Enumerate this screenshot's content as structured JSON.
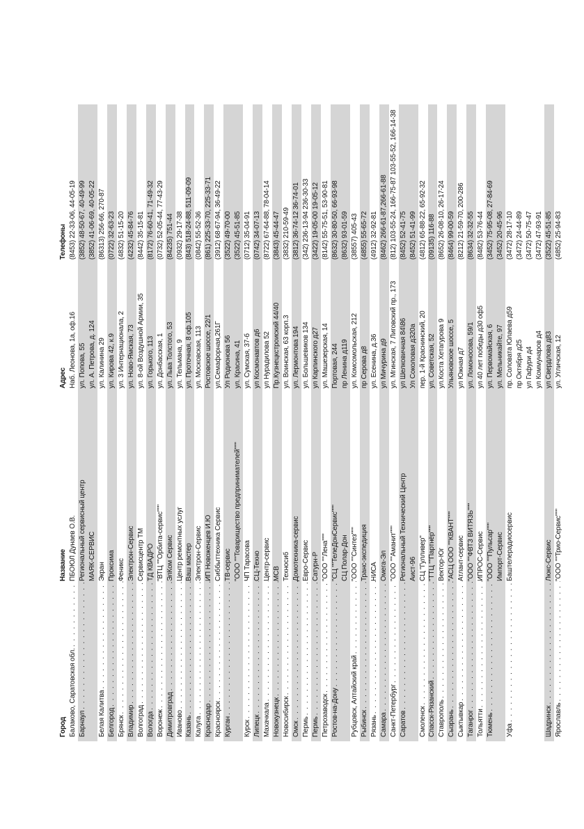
{
  "page": {
    "background": "#ffffff",
    "stripe_color": "#d5d5d5",
    "text_color": "#141414"
  },
  "table": {
    "columns": [
      {
        "key": "city",
        "label": "Город"
      },
      {
        "key": "name",
        "label": "Название"
      },
      {
        "key": "address",
        "label": "Адрес"
      },
      {
        "key": "phones",
        "label": "Телефоны"
      }
    ],
    "rows": [
      {
        "city": "Балаково, Саратовская обл.",
        "name": "ПБОЮЛ Дунаев О.В.",
        "address": "Наб. Леонова, 1а, оф.16",
        "phones": "(8453) 22-33-06, 44-05-19",
        "shaded": false,
        "leader": true
      },
      {
        "city": "Барнаул",
        "name": "Региональный сервисный центр",
        "address": "ул. Попова, 55",
        "phones": "(3852) 48-50-67, 40-49-99",
        "shaded": true,
        "leader": true
      },
      {
        "city": "",
        "name": "МАЯК-СЕРВИС",
        "address": "ул. А. Петрова, д. 124",
        "phones": "(3852) 41-06-69, 40-05-22",
        "shaded": true,
        "leader": false
      },
      {
        "city": "Белая Калитва",
        "name": "Экран",
        "address": "ул. Калинина 29",
        "phones": "(86313) 256-66, 270-87",
        "shaded": false,
        "leader": true
      },
      {
        "city": "Белгород",
        "name": "Проксима",
        "address": "ул. Кирова 42, к.9",
        "phones": "(0722) 32-63-23",
        "shaded": true,
        "leader": true
      },
      {
        "city": "Брянск",
        "name": "Феникс",
        "address": "ул. 3 Интернационала, 2",
        "phones": "(4832) 51-15-20",
        "shaded": false,
        "leader": true
      },
      {
        "city": "Владимир",
        "name": "Электрон-Сервис",
        "address": "ул. Ново-Ямская, 73",
        "phones": "(4232) 45-84-76",
        "shaded": true,
        "leader": true
      },
      {
        "city": "Волгоград",
        "name": "Сервисцентр ТМ",
        "address": "ул. 8-ой Воздушной Армии, 35",
        "phones": "(8442) 35-15-81",
        "shaded": false,
        "leader": true
      },
      {
        "city": "Вологда",
        "name": "ТД КВАДРО",
        "address": "ул. Горького, 113",
        "phones": "(8172) 76-60-41, 71-49-32",
        "shaded": true,
        "leader": true
      },
      {
        "city": "Воронеж",
        "name": "\"ВТЦ \"\"Орбита-сервис\"\"\"",
        "address": "ул. Донбасская, 1",
        "phones": "(0732) 52-05-44, 77-43-29",
        "shaded": false,
        "leader": true
      },
      {
        "city": "Димитровград",
        "name": "ЭлКом Сервис",
        "address": "ул. Льва Толстого, 53",
        "phones": "(84235) 751-44",
        "shaded": true,
        "leader": true
      },
      {
        "city": "Иваново",
        "name": "Центр ремонтных услуг",
        "address": "ул. Тельмана, 9",
        "phones": "(0932) 29-17-38",
        "shaded": false,
        "leader": true
      },
      {
        "city": "Казань",
        "name": "Ваш мастер",
        "address": "ул. Проточная, 8 оф.105",
        "phones": "(843) 518-24-88, 511-09-09",
        "shaded": true,
        "leader": true
      },
      {
        "city": "Калуга",
        "name": "Электрон-Сервис",
        "address": "ул. Московская, 113",
        "phones": "(0842) 55-52-36",
        "shaded": false,
        "leader": true
      },
      {
        "city": "Краснодар",
        "name": "ИП Новоженцев И.Ю",
        "address": "Ростовское шоссе, 22/1",
        "phones": "(861) 225-33-70, 225-33-71",
        "shaded": true,
        "leader": true
      },
      {
        "city": "Красноярск",
        "name": "Сиббыттехника Сервис",
        "address": "ул.Семафорная,261Г",
        "phones": "(3912) 68-67-94, 36-49-22",
        "shaded": false,
        "leader": true
      },
      {
        "city": "Курган",
        "name": "ТВ-сервис",
        "address": "Ул Родионова 56",
        "phones": "(3522) 49-70-00",
        "shaded": true,
        "leader": true
      },
      {
        "city": "",
        "name": "\"ООО \"\"Товарищество предпринимателей\"\"\"",
        "address": "ул. Красина, 41",
        "phones": "(3522) 45-51-85",
        "shaded": true,
        "leader": false
      },
      {
        "city": "Курск",
        "name": "ЧП Тарасова",
        "address": "ул. Сумская, 37-б",
        "phones": "(0712) 35-04-91",
        "shaded": false,
        "leader": true
      },
      {
        "city": "Липецк",
        "name": "СЦ-Техно",
        "address": "ул Космонавтов д6",
        "phones": "(0742) 34-07-13",
        "shaded": true,
        "leader": true
      },
      {
        "city": "Махачкала",
        "name": "Центр-сервис",
        "address": "ул Нурадилова 52",
        "phones": "(8722) 67-64-88, 78-04-14",
        "shaded": false,
        "leader": true
      },
      {
        "city": "Новокузнецк",
        "name": "МСВ",
        "address": "Пр.Кузнецкстроиский 44/40",
        "phones": "(3843) 45-44-47",
        "shaded": true,
        "leader": true
      },
      {
        "city": "Новосибирск",
        "name": "Техносиб",
        "address": "ул. Воинская, 63 корп.3",
        "phones": "(3832) 210-59-49",
        "shaded": false,
        "leader": true
      },
      {
        "city": "Омск",
        "name": "Домотехника-сервис",
        "address": "ул. Лермонтова 194",
        "phones": "(3812) 36-74-12 36-74-01",
        "shaded": true,
        "leader": true
      },
      {
        "city": "Пермь",
        "name": "Евро-Сервис",
        "address": "ул. Большевиков 134",
        "phones": "(342) 236-13-94 236-30-33",
        "shaded": false,
        "leader": true
      },
      {
        "city": "Пермь",
        "name": "Сатурн-Р",
        "address": "ул Карпинского д27",
        "phones": "(3422) 19-05-00 19-05-12",
        "shaded": true,
        "leader": true
      },
      {
        "city": "Петрозаводск",
        "name": "\"ООО \"\"Лена\"\"\"",
        "address": "ул. Машезерская, 14",
        "phones": "(8142) 55-75-51, 53-90-81",
        "shaded": false,
        "leader": true
      },
      {
        "city": "Ростов-на-Дону",
        "name": "\"СЦ \"\"ТелеДонСервис\"\"\"",
        "address": "Портовая, 244",
        "phones": "(8632) 30-80-50, 66-93-98",
        "shaded": true,
        "leader": true
      },
      {
        "city": "",
        "name": "СЦ Полар-Дон",
        "address": "пр Ленина д119",
        "phones": "(8632) 93-01-59",
        "shaded": true,
        "leader": false
      },
      {
        "city": "Рубцовск, Алтайский край",
        "name": "\"ООО \"\"Синтез\"\"\"",
        "address": "ул. Комсомольская, 212",
        "phones": "(38557) 405-43",
        "shaded": false,
        "leader": true
      },
      {
        "city": "Рыбинск",
        "name": "Транс-экспедиция",
        "address": "пр Серова д8",
        "phones": "(4855) 55-65-72",
        "shaded": true,
        "leader": true
      },
      {
        "city": "Рязань",
        "name": "НИСА",
        "address": "ул. Есенина, д.36",
        "phones": "(4912) 32-92-81",
        "shaded": false,
        "leader": true
      },
      {
        "city": "Самара",
        "name": "Омега-Эл",
        "address": "ул Мичурина д9",
        "phones": "(8462) 266-61-87,266-61-88",
        "shaded": true,
        "leader": true
      },
      {
        "city": "Санкт-Петербург",
        "name": "\"ООО \"\"Аманит\"\"\"",
        "address": "ул. Мгинская, 7 Лиговский пр., 173",
        "phones": "(812) 103-55-24, 166-75-87 103-55-52, 166-14-38",
        "shaded": false,
        "leader": true
      },
      {
        "city": "Саратов",
        "name": "Региональный Технический Центр",
        "address": "ул Шелковичная 84\\86",
        "phones": "(8452) 52-41-75",
        "shaded": true,
        "leader": true
      },
      {
        "city": "",
        "name": "Аист-96",
        "address": "Ул Соколовая д320а",
        "phones": "(8452) 51-41-99",
        "shaded": true,
        "leader": false
      },
      {
        "city": "Смоленск",
        "name": "СЦ \"Гулливер\"",
        "address": "пер. 1-й Краснинский, 20",
        "phones": "(4812) 65-88-22, 65-92-32",
        "shaded": false,
        "leader": true
      },
      {
        "city": "Спасск-Рязанский",
        "name": "\"ТТЦ \"\"Партнёр\"\"\"",
        "address": "ул. Советская, 52",
        "phones": "(09135) 116-88",
        "shaded": true,
        "leader": true
      },
      {
        "city": "Ставрополь",
        "name": "Вектор-Юг",
        "address": "ул.Коста Хетагурова 9",
        "phones": "(8652) 26-08-10, 26-17-24",
        "shaded": false,
        "leader": true
      },
      {
        "city": "Сызрань",
        "name": "\"АСЦ ООО \"\"КВАНТ\"\"\"",
        "address": "Ульяновское шоссе, 5",
        "phones": "(8464) 99-00-59",
        "shaded": true,
        "leader": true
      },
      {
        "city": "Сыктывкар",
        "name": "Атлант-сервис",
        "address": "ул Южная д7",
        "phones": "(8212) 21-59-70, 200-286",
        "shaded": false,
        "leader": true
      },
      {
        "city": "Таганрог",
        "name": "\"ООО \"\"ФВТЗ ВИТЯЗЬ\"\"\"",
        "address": "ул. Ломоносова, 59/1",
        "phones": "(8634) 32-32-55",
        "shaded": true,
        "leader": true
      },
      {
        "city": "Тольятти",
        "name": "ИПРОС-Сервис",
        "address": "ул 40 лет победы д30 оф5",
        "phones": "(8482) 53-76-44",
        "shaded": false,
        "leader": true
      },
      {
        "city": "Тюмень",
        "name": "\"ООО \"\"Пульсар\"\"\"",
        "address": "ул. Первомайская, 6",
        "phones": "(3452) 75-95-08, 27-84-69",
        "shaded": true,
        "leader": true
      },
      {
        "city": "",
        "name": "Импорт-Сервис",
        "address": "ул. Мельникайте, 97",
        "phones": "(3452) 20-45-96",
        "shaded": true,
        "leader": false
      },
      {
        "city": "Уфа",
        "name": "Баштелерадиосервис",
        "address": "пр. Соловата Юлаева д59",
        "phones": "(3472) 28-17-10",
        "shaded": false,
        "leader": true
      },
      {
        "city": "",
        "name": "",
        "address": "пр Октября д25",
        "phones": "(3472) 24-44-89",
        "shaded": false,
        "leader": false
      },
      {
        "city": "",
        "name": "",
        "address": "ул Гафури д4",
        "phones": "(3472) 50-75-47",
        "shaded": false,
        "leader": false
      },
      {
        "city": "",
        "name": "",
        "address": "ул Коммунаров д4",
        "phones": "(3472) 47-93-91",
        "shaded": false,
        "leader": false
      },
      {
        "city": "Шадринск",
        "name": "Люкс-Сервис",
        "address": "ул Свердлова д83",
        "phones": "(3522) 45-51-85",
        "shaded": true,
        "leader": true
      },
      {
        "city": "Ярославль",
        "name": "\"ООО \"\"Трио-Сервис\"\"\"",
        "address": "ул. Угличская, 12",
        "phones": "(4852) 25-94-83",
        "shaded": false,
        "leader": true
      }
    ]
  }
}
